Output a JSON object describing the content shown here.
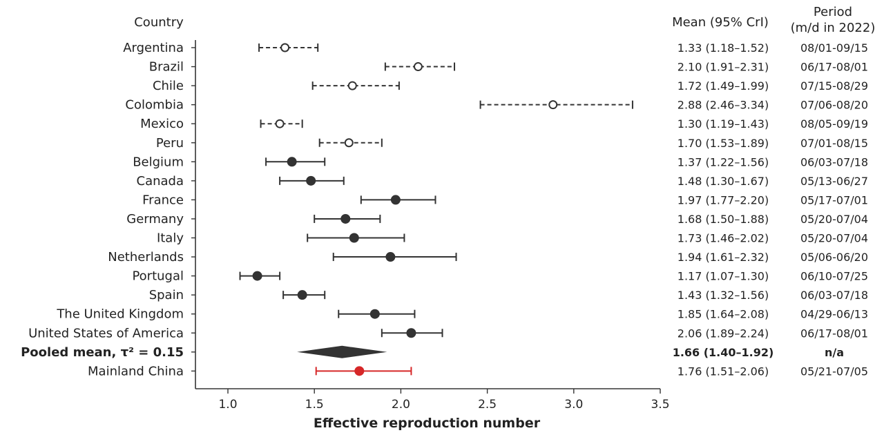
{
  "chart_data": {
    "type": "forest",
    "xlabel": "Effective reproduction number",
    "xlim": [
      0.8,
      3.5
    ],
    "xticks": [
      1.0,
      1.5,
      2.0,
      2.5,
      3.0,
      3.5
    ],
    "xtick_labels": [
      "1.0",
      "1.5",
      "2.0",
      "2.5",
      "3.0",
      "3.5"
    ],
    "headers": {
      "country": "Country",
      "mean": "Mean (95% CrI)",
      "period_line1": "Period",
      "period_line2": "(m/d in 2022)"
    },
    "colors": {
      "main": "#333333",
      "highlight": "#d62728"
    },
    "rows": [
      {
        "country": "Argentina",
        "mean": 1.33,
        "lo": 1.18,
        "hi": 1.52,
        "ci_text": "1.33 (1.18–1.52)",
        "period": "08/01-09/15",
        "style": "dashed-open"
      },
      {
        "country": "Brazil",
        "mean": 2.1,
        "lo": 1.91,
        "hi": 2.31,
        "ci_text": "2.10 (1.91–2.31)",
        "period": "06/17-08/01",
        "style": "dashed-open"
      },
      {
        "country": "Chile",
        "mean": 1.72,
        "lo": 1.49,
        "hi": 1.99,
        "ci_text": "1.72 (1.49–1.99)",
        "period": "07/15-08/29",
        "style": "dashed-open"
      },
      {
        "country": "Colombia",
        "mean": 2.88,
        "lo": 2.46,
        "hi": 3.34,
        "ci_text": "2.88 (2.46–3.34)",
        "period": "07/06-08/20",
        "style": "dashed-open"
      },
      {
        "country": "Mexico",
        "mean": 1.3,
        "lo": 1.19,
        "hi": 1.43,
        "ci_text": "1.30 (1.19–1.43)",
        "period": "08/05-09/19",
        "style": "dashed-open"
      },
      {
        "country": "Peru",
        "mean": 1.7,
        "lo": 1.53,
        "hi": 1.89,
        "ci_text": "1.70 (1.53–1.89)",
        "period": "07/01-08/15",
        "style": "dashed-open"
      },
      {
        "country": "Belgium",
        "mean": 1.37,
        "lo": 1.22,
        "hi": 1.56,
        "ci_text": "1.37 (1.22–1.56)",
        "period": "06/03-07/18",
        "style": "solid"
      },
      {
        "country": "Canada",
        "mean": 1.48,
        "lo": 1.3,
        "hi": 1.67,
        "ci_text": "1.48 (1.30–1.67)",
        "period": "05/13-06/27",
        "style": "solid"
      },
      {
        "country": "France",
        "mean": 1.97,
        "lo": 1.77,
        "hi": 2.2,
        "ci_text": "1.97 (1.77–2.20)",
        "period": "05/17-07/01",
        "style": "solid"
      },
      {
        "country": "Germany",
        "mean": 1.68,
        "lo": 1.5,
        "hi": 1.88,
        "ci_text": "1.68 (1.50–1.88)",
        "period": "05/20-07/04",
        "style": "solid"
      },
      {
        "country": "Italy",
        "mean": 1.73,
        "lo": 1.46,
        "hi": 2.02,
        "ci_text": "1.73 (1.46–2.02)",
        "period": "05/20-07/04",
        "style": "solid"
      },
      {
        "country": "Netherlands",
        "mean": 1.94,
        "lo": 1.61,
        "hi": 2.32,
        "ci_text": "1.94 (1.61–2.32)",
        "period": "05/06-06/20",
        "style": "solid"
      },
      {
        "country": "Portugal",
        "mean": 1.17,
        "lo": 1.07,
        "hi": 1.3,
        "ci_text": "1.17 (1.07–1.30)",
        "period": "06/10-07/25",
        "style": "solid"
      },
      {
        "country": "Spain",
        "mean": 1.43,
        "lo": 1.32,
        "hi": 1.56,
        "ci_text": "1.43 (1.32–1.56)",
        "period": "06/03-07/18",
        "style": "solid"
      },
      {
        "country": "The United Kingdom",
        "mean": 1.85,
        "lo": 1.64,
        "hi": 2.08,
        "ci_text": "1.85 (1.64–2.08)",
        "period": "04/29-06/13",
        "style": "solid"
      },
      {
        "country": "United States of America",
        "mean": 2.06,
        "lo": 1.89,
        "hi": 2.24,
        "ci_text": "2.06 (1.89–2.24)",
        "period": "06/17-08/01",
        "style": "solid"
      },
      {
        "country": "Pooled mean, τ² = 0.15",
        "mean": 1.66,
        "lo": 1.4,
        "hi": 1.92,
        "ci_text": "1.66 (1.40–1.92)",
        "period": "n/a",
        "style": "pooled"
      },
      {
        "country": "Mainland China",
        "mean": 1.76,
        "lo": 1.51,
        "hi": 2.06,
        "ci_text": "1.76 (1.51–2.06)",
        "period": "05/21-07/05",
        "style": "highlight"
      }
    ]
  }
}
